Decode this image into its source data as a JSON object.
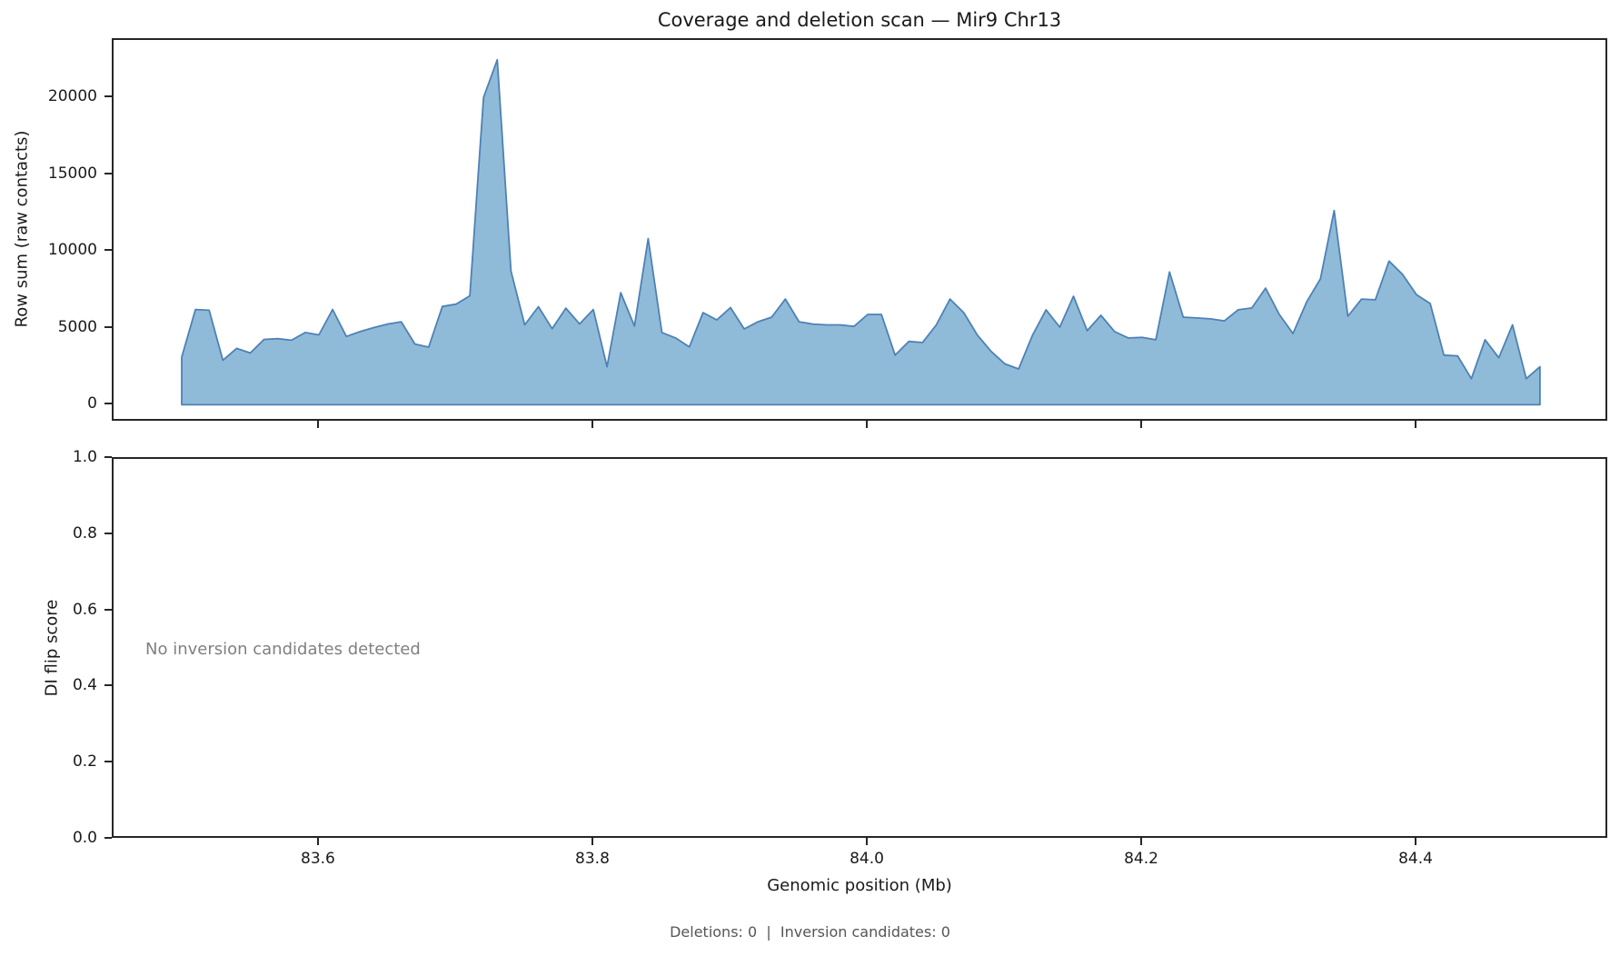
{
  "title": "Coverage and deletion scan — Mir9 Chr13",
  "footer": {
    "text": "Deletions: 0  |  Inversion candidates: 0",
    "deletions": 0,
    "inversion_candidates": 0
  },
  "chart_data": [
    {
      "type": "area",
      "title": "Coverage and deletion scan — Mir9 Chr13",
      "ylabel": "Row sum (raw contacts)",
      "xlabel": "",
      "x_start": 83.5,
      "x_step": 0.01,
      "x_end": 84.49,
      "values": [
        3100,
        6200,
        6150,
        2900,
        3670,
        3370,
        4250,
        4300,
        4200,
        4700,
        4550,
        6200,
        4450,
        4760,
        5020,
        5250,
        5400,
        3950,
        3750,
        6400,
        6550,
        7090,
        20000,
        22450,
        8700,
        5200,
        6380,
        4950,
        6290,
        5260,
        6200,
        2470,
        7290,
        5120,
        10820,
        4700,
        4350,
        3760,
        6000,
        5520,
        6320,
        4930,
        5400,
        5700,
        6880,
        5400,
        5250,
        5200,
        5200,
        5100,
        5880,
        5880,
        3230,
        4120,
        4050,
        5200,
        6880,
        6000,
        4530,
        3470,
        2660,
        2330,
        4500,
        6180,
        5050,
        7060,
        4820,
        5820,
        4760,
        4350,
        4380,
        4230,
        8640,
        5700,
        5650,
        5590,
        5460,
        6180,
        6300,
        7590,
        5880,
        4640,
        6700,
        8200,
        12640,
        5760,
        6880,
        6830,
        9350,
        8470,
        7170,
        6590,
        3230,
        3180,
        1700,
        4230,
        3060,
        5200,
        1700,
        2470
      ],
      "xlim": [
        83.4497,
        84.5397
      ],
      "ylim": [
        -1100,
        23800
      ],
      "yticks": [
        0,
        5000,
        10000,
        15000,
        20000
      ],
      "xticks": [
        83.6,
        83.8,
        84.0,
        84.2,
        84.4
      ],
      "grid": false,
      "legend": "none",
      "fill_color": "#1f77b4",
      "fill_opacity": 0.5,
      "line_color": "#4e81b5",
      "line_width": 1.8
    },
    {
      "type": "line",
      "title": "",
      "ylabel": "DI flip score",
      "xlabel": "Genomic position (Mb)",
      "annotation": "No inversion candidates detected",
      "annotation_color": "#808080",
      "values": [],
      "xlim": [
        83.4497,
        84.5397
      ],
      "ylim": [
        0.0,
        1.0
      ],
      "yticks": [
        0.0,
        0.2,
        0.4,
        0.6,
        0.8,
        1.0
      ],
      "xticks": [
        83.6,
        83.8,
        84.0,
        84.2,
        84.4
      ],
      "grid": false,
      "legend": "none"
    }
  ]
}
